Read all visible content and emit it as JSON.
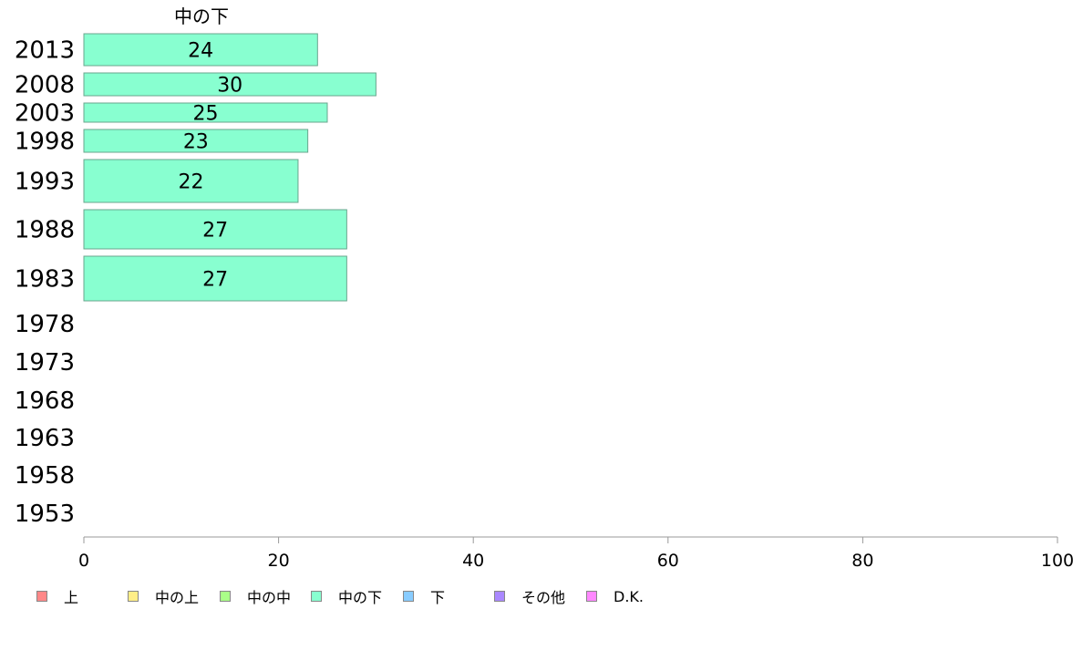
{
  "chart_data": {
    "type": "bar",
    "orientation": "horizontal",
    "title": "中の下",
    "categories": [
      "2013",
      "2008",
      "2003",
      "1998",
      "1993",
      "1988",
      "1983",
      "1978",
      "1973",
      "1968",
      "1963",
      "1958",
      "1953"
    ],
    "series": [
      {
        "name": "中の下",
        "values": [
          24,
          30,
          25,
          23,
          22,
          27,
          27,
          null,
          null,
          null,
          null,
          null,
          null
        ],
        "color": "#88ffd0"
      }
    ],
    "data_labels": [
      "24",
      "30",
      "25",
      "23",
      "22",
      "27",
      "27"
    ],
    "xlim": [
      0,
      100
    ],
    "xticks": [
      "0",
      "20",
      "40",
      "60",
      "80",
      "100"
    ],
    "grid": false,
    "legend_position": "bottom-left",
    "legend": [
      {
        "label": "上",
        "color": "#ff8888"
      },
      {
        "label": "中の上",
        "color": "#ffee88"
      },
      {
        "label": "中の中",
        "color": "#aaff88"
      },
      {
        "label": "中の下",
        "color": "#88ffd0"
      },
      {
        "label": "下",
        "color": "#88ccff"
      },
      {
        "label": "その他",
        "color": "#aa88ff"
      },
      {
        "label": "D.K.",
        "color": "#ff88ff"
      }
    ]
  }
}
